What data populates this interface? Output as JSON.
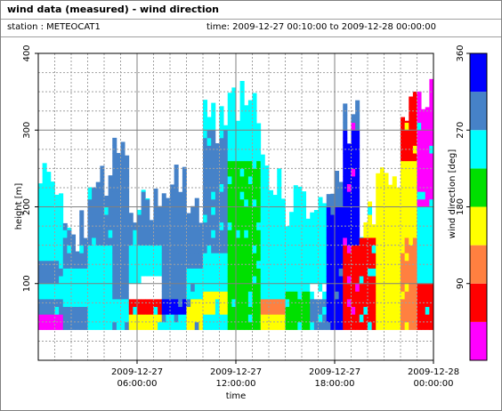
{
  "title": "wind data (measured) - wind direction",
  "station": "station : METEOCAT1",
  "time_range": "time: 2009-12-27 00:10:00 to 2009-12-28 00:00:00",
  "chart_data": {
    "type": "heatmap",
    "xlabel": "time",
    "ylabel": "height [m]",
    "ylim": [
      0,
      400
    ],
    "yticks": [
      100,
      200,
      300,
      400
    ],
    "xlim_hours": [
      0,
      24
    ],
    "xticks": [
      {
        "hour": 6,
        "line1": "2009-12-27",
        "line2": "06:00:00"
      },
      {
        "hour": 12,
        "line1": "2009-12-27",
        "line2": "12:00:00"
      },
      {
        "hour": 18,
        "line1": "2009-12-27",
        "line2": "18:00:00"
      },
      {
        "hour": 24,
        "line1": "2009-12-28",
        "line2": "00:00:00"
      }
    ],
    "grid": true,
    "colorbar": {
      "label": "wind direction [deg]",
      "ticks": [
        90,
        180,
        270,
        360
      ],
      "range": [
        0,
        360
      ],
      "bins": [
        {
          "from": 0,
          "to": 45,
          "color": "#ff00ff"
        },
        {
          "from": 45,
          "to": 90,
          "color": "#ff0000"
        },
        {
          "from": 90,
          "to": 135,
          "color": "#ff8040"
        },
        {
          "from": 135,
          "to": 180,
          "color": "#ffff00"
        },
        {
          "from": 180,
          "to": 225,
          "color": "#00e000"
        },
        {
          "from": 225,
          "to": 270,
          "color": "#00ffff"
        },
        {
          "from": 270,
          "to": 315,
          "color": "#4682c8"
        },
        {
          "from": 315,
          "to": 360,
          "color": "#0000ff"
        }
      ]
    },
    "colors": {
      "magenta": "#ff00ff",
      "red": "#ff0000",
      "orange": "#ff8040",
      "yellow": "#ffff00",
      "green": "#00e000",
      "cyan": "#00ffff",
      "steelblue": "#4682c8",
      "blue": "#0000ff",
      "white": "#ffffff"
    },
    "profiles": [
      {
        "t": [
          0,
          1.5
        ],
        "top": 260,
        "base": "cyan",
        "segs": [
          [
            40,
            60,
            "magenta"
          ],
          [
            60,
            80,
            "steelblue"
          ],
          [
            100,
            130,
            "steelblue"
          ]
        ]
      },
      {
        "t": [
          1.5,
          3
        ],
        "top": 200,
        "base": "cyan",
        "segs": [
          [
            40,
            70,
            "steelblue"
          ],
          [
            120,
            200,
            "steelblue"
          ]
        ]
      },
      {
        "t": [
          3,
          4.5
        ],
        "top": 270,
        "base": "cyan",
        "segs": [
          [
            40,
            60,
            "cyan"
          ],
          [
            150,
            270,
            "steelblue"
          ]
        ]
      },
      {
        "t": [
          4.5,
          5.5
        ],
        "top": 300,
        "base": "steelblue",
        "segs": [
          [
            40,
            80,
            "cyan"
          ]
        ]
      },
      {
        "t": [
          5.5,
          7.5
        ],
        "top": 230,
        "base": "cyan",
        "segs": [
          [
            40,
            60,
            "yellow"
          ],
          [
            60,
            80,
            "red"
          ],
          [
            80,
            110,
            "white"
          ],
          [
            150,
            230,
            "steelblue"
          ]
        ]
      },
      {
        "t": [
          7.5,
          9
        ],
        "top": 260,
        "base": "steelblue",
        "segs": [
          [
            40,
            60,
            "cyan"
          ],
          [
            60,
            80,
            "blue"
          ]
        ]
      },
      {
        "t": [
          9,
          10
        ],
        "top": 220,
        "base": "steelblue",
        "segs": [
          [
            40,
            80,
            "yellow"
          ],
          [
            80,
            120,
            "cyan"
          ]
        ]
      },
      {
        "t": [
          10,
          11.5
        ],
        "top": 340,
        "base": "cyan",
        "segs": [
          [
            40,
            60,
            "cyan"
          ],
          [
            60,
            90,
            "yellow"
          ],
          [
            140,
            300,
            "steelblue"
          ]
        ]
      },
      {
        "t": [
          11.5,
          13.5
        ],
        "top": 365,
        "base": "cyan",
        "segs": [
          [
            40,
            80,
            "green"
          ],
          [
            80,
            260,
            "green"
          ]
        ]
      },
      {
        "t": [
          13.5,
          15
        ],
        "top": 270,
        "base": "cyan",
        "segs": [
          [
            40,
            60,
            "yellow"
          ],
          [
            60,
            80,
            "orange"
          ],
          [
            80,
            150,
            "cyan"
          ]
        ]
      },
      {
        "t": [
          15,
          16.5
        ],
        "top": 230,
        "base": "cyan",
        "segs": [
          [
            40,
            90,
            "green"
          ],
          [
            90,
            180,
            "cyan"
          ]
        ]
      },
      {
        "t": [
          16.5,
          17.5
        ],
        "top": 240,
        "base": "cyan",
        "segs": [
          [
            40,
            80,
            "steelblue"
          ],
          [
            80,
            100,
            "white"
          ]
        ]
      },
      {
        "t": [
          17.5,
          18.5
        ],
        "top": 270,
        "base": "steelblue",
        "segs": [
          [
            40,
            200,
            "blue"
          ],
          [
            200,
            270,
            "steelblue"
          ]
        ]
      },
      {
        "t": [
          18.5,
          19.5
        ],
        "top": 340,
        "base": "magenta",
        "segs": [
          [
            40,
            150,
            "red"
          ],
          [
            150,
            300,
            "blue"
          ],
          [
            300,
            340,
            "steelblue"
          ]
        ]
      },
      {
        "t": [
          19.5,
          20.5
        ],
        "top": 210,
        "base": "cyan",
        "segs": [
          [
            40,
            160,
            "red"
          ],
          [
            160,
            210,
            "yellow"
          ]
        ]
      },
      {
        "t": [
          20.5,
          22
        ],
        "top": 260,
        "base": "yellow",
        "segs": [
          [
            40,
            230,
            "yellow"
          ]
        ]
      },
      {
        "t": [
          22,
          23
        ],
        "top": 370,
        "base": "yellow",
        "segs": [
          [
            40,
            160,
            "orange"
          ],
          [
            160,
            260,
            "yellow"
          ],
          [
            260,
            370,
            "red"
          ]
        ]
      },
      {
        "t": [
          23,
          24
        ],
        "top": 370,
        "base": "cyan",
        "segs": [
          [
            40,
            100,
            "red"
          ],
          [
            100,
            200,
            "cyan"
          ],
          [
            200,
            370,
            "magenta"
          ]
        ]
      }
    ]
  }
}
